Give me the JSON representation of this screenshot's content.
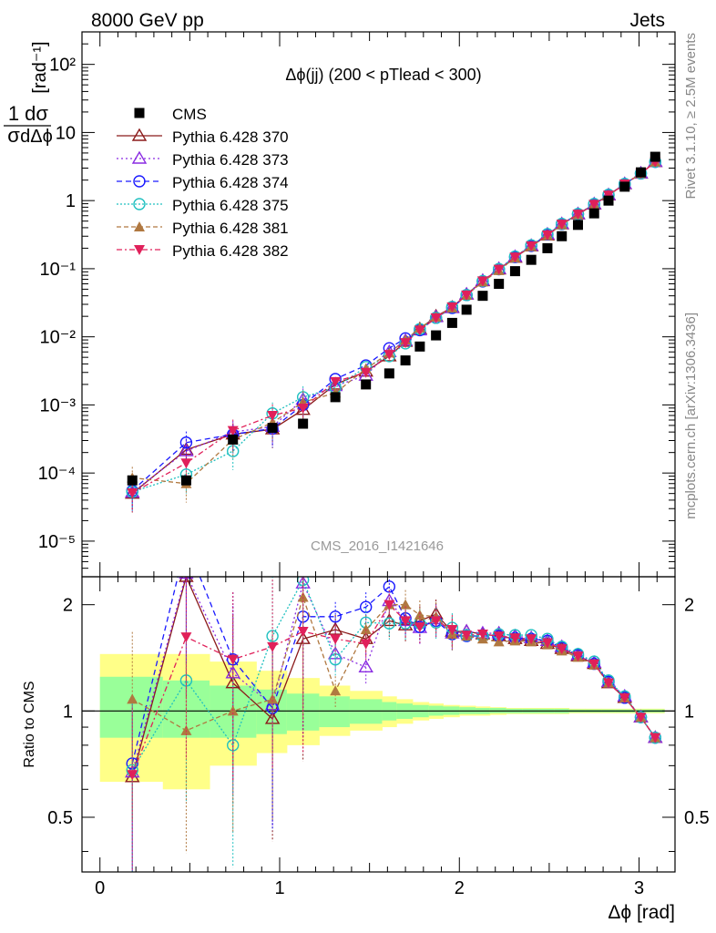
{
  "header": {
    "left_label": "8000 GeV pp",
    "right_label": "Jets"
  },
  "side_labels": {
    "rivet": "Rivet 3.1.10, ≥ 2.5M events",
    "mcplots": "mcplots.cern.ch [arXiv:1306.3436]"
  },
  "chart_data": {
    "type": "line",
    "title": "Δϕ(jj) (200 < pTlead <  300)",
    "watermark": "CMS_2016_I1421646",
    "xlabel": "Δϕ [rad]",
    "ylabel_main": "1/σ dσ/dΔϕ [rad⁻¹]",
    "ylabel_ratio": "Ratio to CMS",
    "xlim": [
      -0.1,
      3.2
    ],
    "main_ylim": [
      3e-06,
      300
    ],
    "main_yscale": "log",
    "ratio_ylim": [
      0.35,
      2.4
    ],
    "ratio_yscale": "log",
    "x_ticks": [
      "0",
      "1",
      "2",
      "3"
    ],
    "main_y_ticks": [
      "10⁻⁵",
      "10⁻⁴",
      "10⁻³",
      "10⁻²",
      "10⁻¹",
      "1",
      "10",
      "10²"
    ],
    "ratio_y_ticks": [
      "0.5",
      "1",
      "2"
    ],
    "legend_position": "top-left",
    "x": [
      0.18,
      0.48,
      0.74,
      0.96,
      1.13,
      1.31,
      1.48,
      1.61,
      1.7,
      1.78,
      1.87,
      1.96,
      2.04,
      2.13,
      2.22,
      2.31,
      2.4,
      2.49,
      2.57,
      2.66,
      2.75,
      2.83,
      2.92,
      3.01,
      3.09
    ],
    "data": {
      "name": "CMS",
      "color": "#000000",
      "values": [
        7.8e-05,
        7.8e-05,
        0.00031,
        0.00046,
        0.00053,
        0.0013,
        0.002,
        0.0029,
        0.0045,
        0.0072,
        0.0105,
        0.016,
        0.025,
        0.04,
        0.06,
        0.092,
        0.135,
        0.2,
        0.3,
        0.44,
        0.65,
        1.0,
        1.6,
        2.6,
        4.4
      ]
    },
    "series": [
      {
        "name": "Pythia 6.428 370",
        "color": "#8b1a1a",
        "marker": "triangle-open",
        "dash": "",
        "values": [
          5e-05,
          0.00022,
          0.00037,
          0.00044,
          0.00085,
          0.002,
          0.0031,
          0.0052,
          0.0085,
          0.013,
          0.02,
          0.027,
          0.042,
          0.066,
          0.098,
          0.146,
          0.214,
          0.31,
          0.45,
          0.63,
          0.88,
          1.2,
          1.75,
          2.5,
          3.7
        ],
        "ratio": [
          0.65,
          2.4,
          1.2,
          0.95,
          1.6,
          1.7,
          1.6,
          1.8,
          1.75,
          1.8,
          1.88,
          1.68,
          1.68,
          1.65,
          1.63,
          1.6,
          1.58,
          1.55,
          1.5,
          1.43,
          1.36,
          1.2,
          1.09,
          0.96,
          0.84
        ]
      },
      {
        "name": "Pythia 6.428 373",
        "color": "#8a2be2",
        "marker": "triangle-open",
        "dash": "2,3",
        "values": [
          5.2e-05,
          0.00021,
          0.0004,
          0.00048,
          0.0012,
          0.0019,
          0.0027,
          0.006,
          0.0088,
          0.0125,
          0.0195,
          0.0265,
          0.042,
          0.067,
          0.1,
          0.15,
          0.218,
          0.32,
          0.455,
          0.635,
          0.89,
          1.21,
          1.76,
          2.51,
          3.72
        ],
        "ratio": [
          0.67,
          2.45,
          1.28,
          1.04,
          2.3,
          1.45,
          1.33,
          2.05,
          1.8,
          1.72,
          1.82,
          1.66,
          1.68,
          1.66,
          1.66,
          1.63,
          1.61,
          1.58,
          1.52,
          1.44,
          1.37,
          1.21,
          1.1,
          0.96,
          0.84
        ]
      },
      {
        "name": "Pythia 6.428 374",
        "color": "#1a1aff",
        "marker": "circle-open",
        "dash": "6,4",
        "values": [
          5.5e-05,
          0.00028,
          0.00037,
          0.00045,
          0.001,
          0.0024,
          0.0038,
          0.0068,
          0.0095,
          0.0125,
          0.019,
          0.0265,
          0.041,
          0.065,
          0.098,
          0.148,
          0.216,
          0.318,
          0.452,
          0.632,
          0.885,
          1.21,
          1.75,
          2.5,
          3.7
        ],
        "ratio": [
          0.71,
          3.0,
          1.4,
          1.02,
          1.85,
          1.85,
          1.97,
          2.25,
          1.83,
          1.73,
          1.8,
          1.65,
          1.63,
          1.63,
          1.63,
          1.61,
          1.6,
          1.58,
          1.51,
          1.44,
          1.36,
          1.21,
          1.09,
          0.96,
          0.84
        ]
      },
      {
        "name": "Pythia 6.428 375",
        "color": "#20c0c0",
        "marker": "circle-open",
        "dash": "2,2",
        "values": [
          5.3e-05,
          9.5e-05,
          0.00021,
          0.00075,
          0.0013,
          0.0018,
          0.0036,
          0.0052,
          0.008,
          0.013,
          0.019,
          0.0275,
          0.041,
          0.066,
          0.099,
          0.151,
          0.221,
          0.322,
          0.456,
          0.637,
          0.895,
          1.22,
          1.76,
          2.51,
          3.72
        ],
        "ratio": [
          0.68,
          1.22,
          0.8,
          1.63,
          2.35,
          1.4,
          1.78,
          1.77,
          1.77,
          1.77,
          1.78,
          1.72,
          1.64,
          1.63,
          1.65,
          1.64,
          1.64,
          1.6,
          1.52,
          1.45,
          1.38,
          1.22,
          1.1,
          0.96,
          0.84
        ]
      },
      {
        "name": "Pythia 6.428 381",
        "color": "#b07840",
        "marker": "triangle-filled",
        "dash": "5,3",
        "values": [
          8.5e-05,
          7e-05,
          0.00031,
          0.00055,
          0.0011,
          0.0015,
          0.0034,
          0.0058,
          0.009,
          0.0135,
          0.0195,
          0.0265,
          0.041,
          0.064,
          0.094,
          0.145,
          0.212,
          0.308,
          0.445,
          0.625,
          0.875,
          1.2,
          1.74,
          2.5,
          3.7
        ],
        "ratio": [
          1.08,
          0.88,
          1.0,
          1.08,
          2.1,
          1.14,
          1.7,
          2.0,
          2.0,
          1.87,
          1.85,
          1.65,
          1.63,
          1.6,
          1.57,
          1.58,
          1.57,
          1.54,
          1.48,
          1.42,
          1.35,
          1.2,
          1.09,
          0.96,
          0.84
        ]
      },
      {
        "name": "Pythia 6.428 382",
        "color": "#e0205a",
        "marker": "triangle-down-filled",
        "dash": "6,3,2,3",
        "values": [
          5.1e-05,
          0.00014,
          0.00042,
          0.0007,
          0.0009,
          0.0022,
          0.003,
          0.0055,
          0.0082,
          0.0125,
          0.019,
          0.0275,
          0.041,
          0.066,
          0.098,
          0.148,
          0.216,
          0.312,
          0.45,
          0.63,
          0.88,
          1.2,
          1.75,
          2.5,
          3.7
        ],
        "ratio": [
          0.66,
          1.62,
          1.4,
          1.52,
          1.68,
          1.6,
          1.55,
          2.0,
          1.8,
          1.73,
          1.8,
          1.7,
          1.64,
          1.65,
          1.63,
          1.61,
          1.6,
          1.56,
          1.5,
          1.43,
          1.36,
          1.2,
          1.09,
          0.96,
          0.84
        ]
      }
    ],
    "uncertainty_bands": {
      "x_edges": [
        0.0,
        0.35,
        0.61,
        0.87,
        1.04,
        1.22,
        1.39,
        1.57,
        1.65,
        1.74,
        1.83,
        1.91,
        2.0,
        2.09,
        2.17,
        2.26,
        2.35,
        2.44,
        2.53,
        2.61,
        2.7,
        2.79,
        2.87,
        2.96,
        3.05,
        3.14
      ],
      "inner_lo": [
        0.84,
        0.84,
        0.84,
        0.86,
        0.88,
        0.9,
        0.92,
        0.94,
        0.95,
        0.96,
        0.97,
        0.975,
        0.98,
        0.98,
        0.985,
        0.985,
        0.985,
        0.985,
        0.985,
        0.99,
        0.99,
        0.99,
        0.99,
        0.99,
        0.99
      ],
      "inner_hi": [
        1.25,
        1.22,
        1.18,
        1.15,
        1.12,
        1.1,
        1.08,
        1.06,
        1.05,
        1.04,
        1.035,
        1.03,
        1.025,
        1.02,
        1.02,
        1.015,
        1.015,
        1.015,
        1.015,
        1.01,
        1.01,
        1.01,
        1.01,
        1.01,
        1.01
      ],
      "outer_lo": [
        0.63,
        0.6,
        0.7,
        0.76,
        0.8,
        0.85,
        0.88,
        0.9,
        0.92,
        0.94,
        0.95,
        0.96,
        0.97,
        0.97,
        0.975,
        0.98,
        0.98,
        0.98,
        0.98,
        0.985,
        0.985,
        0.985,
        0.985,
        0.985,
        0.985
      ],
      "outer_hi": [
        1.45,
        1.45,
        1.38,
        1.3,
        1.24,
        1.18,
        1.14,
        1.1,
        1.08,
        1.06,
        1.05,
        1.04,
        1.035,
        1.03,
        1.025,
        1.02,
        1.02,
        1.02,
        1.02,
        1.015,
        1.015,
        1.015,
        1.015,
        1.015,
        1.015
      ],
      "inner_color": "#99ff99",
      "outer_color": "#ffff88"
    }
  }
}
